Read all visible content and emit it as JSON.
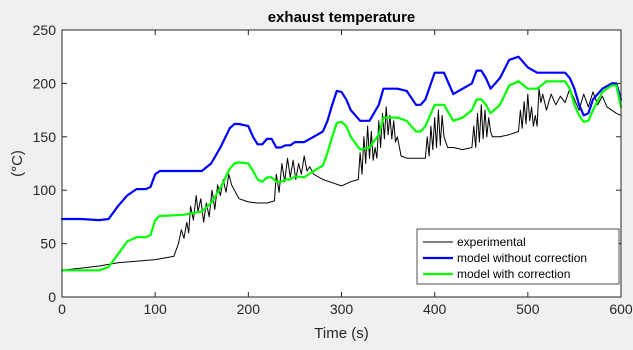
{
  "chart_data": {
    "type": "line",
    "title": "exhaust temperature",
    "xlabel": "Time (s)",
    "ylabel": "(°C)",
    "xlim": [
      0,
      600
    ],
    "ylim": [
      0,
      250
    ],
    "xticks": [
      0,
      100,
      200,
      300,
      400,
      500,
      600
    ],
    "yticks": [
      0,
      50,
      100,
      150,
      200,
      250
    ],
    "grid": false,
    "legend_position": "bottom-right",
    "series": [
      {
        "name": "experimental",
        "color": "#000000",
        "line_width": 1,
        "x": [
          0,
          10,
          40,
          60,
          100,
          120,
          125,
          128,
          131,
          134,
          136,
          138,
          141,
          144,
          146,
          149,
          152,
          155,
          158,
          161,
          164,
          167,
          170,
          173,
          176,
          179,
          182,
          185,
          190,
          200,
          210,
          220,
          228,
          230,
          233,
          236,
          239,
          242,
          245,
          248,
          251,
          254,
          257,
          260,
          263,
          266,
          270,
          280,
          290,
          300,
          310,
          318,
          320,
          322,
          324,
          326,
          328,
          330,
          332,
          334,
          336,
          338,
          340,
          342,
          344,
          346,
          348,
          350,
          352,
          354,
          356,
          358,
          360,
          364,
          370,
          380,
          390,
          392,
          394,
          396,
          398,
          400,
          402,
          404,
          406,
          408,
          410,
          412,
          414,
          416,
          420,
          430,
          440,
          442,
          444,
          446,
          448,
          450,
          452,
          454,
          456,
          458,
          460,
          462,
          464,
          470,
          480,
          490,
          492,
          494,
          496,
          498,
          500,
          502,
          504,
          506,
          508,
          510,
          512,
          514,
          516,
          520,
          525,
          530,
          535,
          540,
          545,
          550,
          555,
          560,
          565,
          570,
          575,
          580,
          585,
          590,
          595,
          600
        ],
        "y": [
          25,
          26,
          29,
          32,
          35,
          38,
          50,
          63,
          55,
          70,
          60,
          85,
          72,
          95,
          80,
          92,
          70,
          88,
          75,
          100,
          82,
          105,
          95,
          110,
          98,
          115,
          105,
          100,
          92,
          89,
          88,
          88,
          90,
          115,
          98,
          125,
          108,
          130,
          112,
          128,
          110,
          125,
          115,
          132,
          118,
          122,
          115,
          110,
          107,
          104,
          108,
          110,
          135,
          115,
          150,
          125,
          160,
          130,
          155,
          128,
          140,
          130,
          165,
          140,
          172,
          148,
          178,
          152,
          170,
          148,
          165,
          145,
          150,
          132,
          130,
          130,
          130,
          150,
          132,
          160,
          138,
          168,
          140,
          175,
          142,
          170,
          150,
          145,
          140,
          140,
          140,
          138,
          140,
          160,
          140,
          172,
          145,
          180,
          148,
          175,
          150,
          168,
          155,
          150,
          150,
          150,
          152,
          155,
          175,
          158,
          183,
          162,
          190,
          165,
          178,
          160,
          170,
          160,
          195,
          182,
          190,
          175,
          190,
          180,
          188,
          182,
          195,
          185,
          175,
          190,
          178,
          192,
          180,
          188,
          178,
          175,
          172,
          170
        ]
      },
      {
        "name": "model without correction",
        "color": "#0000ff",
        "line_width": 2.2,
        "x": [
          0,
          20,
          40,
          50,
          60,
          70,
          80,
          90,
          95,
          100,
          105,
          110,
          130,
          150,
          160,
          170,
          180,
          185,
          190,
          200,
          205,
          210,
          215,
          220,
          225,
          230,
          235,
          240,
          245,
          250,
          260,
          270,
          280,
          285,
          290,
          295,
          300,
          305,
          310,
          320,
          330,
          340,
          345,
          350,
          360,
          370,
          380,
          385,
          390,
          400,
          410,
          420,
          430,
          440,
          445,
          450,
          455,
          460,
          470,
          480,
          490,
          500,
          510,
          520,
          530,
          540,
          545,
          550,
          555,
          560,
          565,
          570,
          580,
          590,
          595,
          600
        ],
        "y": [
          73,
          73,
          72,
          73,
          85,
          95,
          101,
          101,
          103,
          115,
          118,
          118,
          118,
          118,
          125,
          140,
          158,
          162,
          162,
          160,
          150,
          143,
          143,
          148,
          148,
          140,
          140,
          142,
          142,
          145,
          145,
          150,
          155,
          165,
          180,
          193,
          192,
          185,
          175,
          165,
          165,
          180,
          195,
          195,
          195,
          193,
          180,
          180,
          185,
          210,
          210,
          190,
          195,
          200,
          212,
          212,
          205,
          195,
          205,
          222,
          225,
          215,
          210,
          210,
          210,
          210,
          205,
          195,
          180,
          170,
          172,
          185,
          195,
          200,
          200,
          185
        ]
      },
      {
        "name": "model with correction",
        "color": "#00ff00",
        "line_width": 2.2,
        "x": [
          0,
          20,
          40,
          50,
          60,
          70,
          80,
          90,
          95,
          100,
          105,
          110,
          130,
          150,
          160,
          170,
          180,
          185,
          190,
          200,
          205,
          210,
          215,
          220,
          225,
          230,
          235,
          240,
          245,
          250,
          260,
          270,
          280,
          285,
          290,
          295,
          300,
          305,
          310,
          320,
          330,
          340,
          345,
          350,
          360,
          370,
          380,
          385,
          390,
          400,
          410,
          420,
          430,
          440,
          445,
          450,
          455,
          460,
          470,
          480,
          490,
          500,
          510,
          520,
          530,
          540,
          545,
          550,
          555,
          560,
          565,
          570,
          580,
          590,
          595,
          600
        ],
        "y": [
          25,
          25,
          25,
          28,
          40,
          52,
          56,
          56,
          58,
          72,
          76,
          76,
          77,
          80,
          88,
          102,
          120,
          125,
          126,
          125,
          118,
          110,
          108,
          112,
          112,
          108,
          108,
          110,
          110,
          113,
          112,
          118,
          123,
          135,
          150,
          163,
          164,
          160,
          150,
          138,
          140,
          152,
          168,
          168,
          168,
          165,
          155,
          155,
          160,
          180,
          180,
          165,
          168,
          175,
          185,
          185,
          180,
          172,
          180,
          198,
          202,
          195,
          195,
          202,
          202,
          202,
          195,
          180,
          170,
          164,
          165,
          175,
          192,
          198,
          198,
          178
        ]
      }
    ]
  }
}
